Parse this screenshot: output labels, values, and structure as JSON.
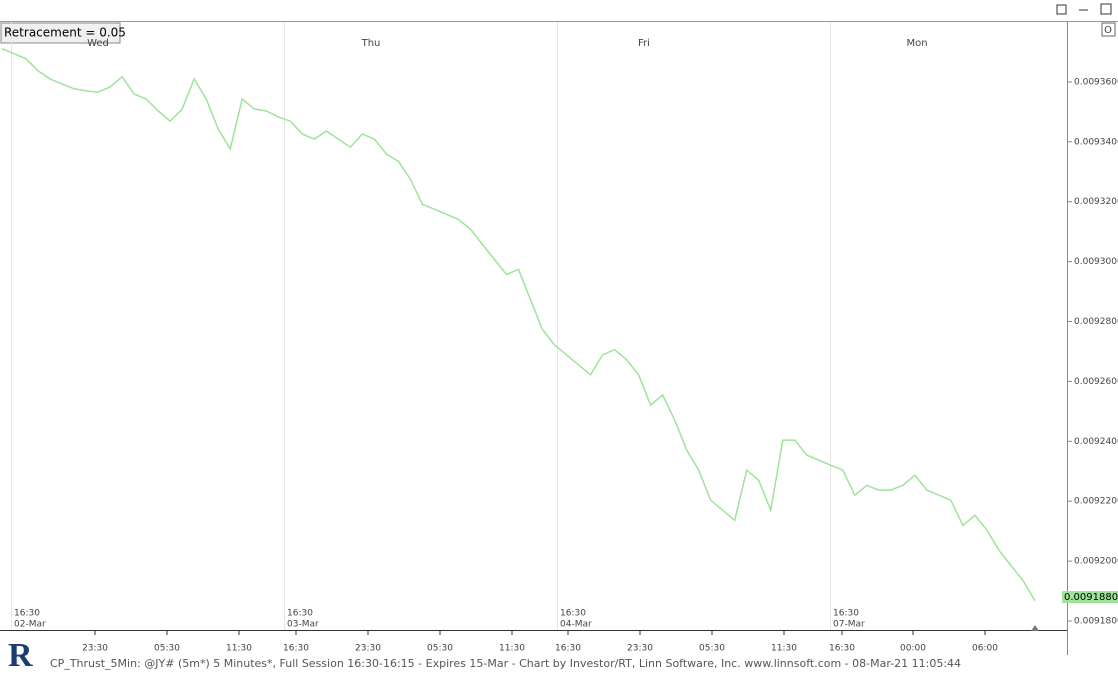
{
  "chart_data": {
    "type": "line",
    "indicator_label": "Retracement = 0.05",
    "series": [
      {
        "color": "#9fe39a",
        "values": [
          0.0093711,
          0.0093694,
          0.0093677,
          0.0093637,
          0.009361,
          0.0093593,
          0.0093577,
          0.009357,
          0.0093566,
          0.0093583,
          0.0093617,
          0.009356,
          0.0093543,
          0.0093503,
          0.0093469,
          0.009351,
          0.009361,
          0.0093543,
          0.0093443,
          0.0093376,
          0.0093543,
          0.009351,
          0.0093503,
          0.0093483,
          0.0093469,
          0.0093426,
          0.0093409,
          0.0093436,
          0.0093409,
          0.0093382,
          0.0093426,
          0.0093409,
          0.0093359,
          0.0093335,
          0.0093275,
          0.0093191,
          0.0093175,
          0.0093158,
          0.0093141,
          0.0093108,
          0.0093057,
          0.0093007,
          0.0092957,
          0.0092974,
          0.0092873,
          0.0092773,
          0.0092722,
          0.0092689,
          0.0092655,
          0.0092622,
          0.0092689,
          0.0092706,
          0.0092672,
          0.0092622,
          0.0092521,
          0.0092555,
          0.0092471,
          0.0092371,
          0.0092304,
          0.0092203,
          0.009217,
          0.0092136,
          0.0092304,
          0.009227,
          0.009217,
          0.0092404,
          0.0092404,
          0.0092354,
          0.0092337,
          0.009232,
          0.0092304,
          0.009222,
          0.0092253,
          0.0092237,
          0.0092237,
          0.0092253,
          0.0092287,
          0.0092237,
          0.009222,
          0.0092203,
          0.0092119,
          0.0092153,
          0.0092103,
          0.0092036,
          0.0091985,
          0.0091935,
          0.0091868
        ]
      }
    ],
    "ylim": [
      0.009177,
      0.00938
    ],
    "yticks": [
      {
        "value": 0.00936,
        "label": "0.0093600"
      },
      {
        "value": 0.00934,
        "label": "0.0093400"
      },
      {
        "value": 0.00932,
        "label": "0.0093200"
      },
      {
        "value": 0.0093,
        "label": "0.0093000"
      },
      {
        "value": 0.00928,
        "label": "0.0092800"
      },
      {
        "value": 0.00926,
        "label": "0.0092600"
      },
      {
        "value": 0.00924,
        "label": "0.0092400"
      },
      {
        "value": 0.00922,
        "label": "0.0092200"
      },
      {
        "value": 0.0092,
        "label": "0.0092000"
      },
      {
        "value": 0.00918,
        "label": "0.0091800"
      }
    ],
    "last_price": {
      "value": 0.009188,
      "label": "0.0091880"
    },
    "days": [
      {
        "name": "Wed",
        "time": "16:30",
        "date": "02-Mar"
      },
      {
        "name": "Thu",
        "time": "16:30",
        "date": "03-Mar"
      },
      {
        "name": "Fri",
        "time": "16:30",
        "date": "04-Mar"
      },
      {
        "name": "Mon",
        "time": "16:30",
        "date": "07-Mar"
      }
    ],
    "x_axis_labels": [
      "23:30",
      "05:30",
      "11:30",
      "16:30",
      "23:30",
      "05:30",
      "11:30",
      "16:30",
      "23:30",
      "05:30",
      "11:30",
      "16:30",
      "00:00",
      "06:00"
    ],
    "footer": "CP_Thrust_5Min: @JY# (5m*) 5 Minutes*, Full Session 16:30-16:15 - Expires 15-Mar - Chart by Investor/RT, Linn Software, Inc. www.linnsoft.com - 08-Mar-21 11:05:44"
  }
}
